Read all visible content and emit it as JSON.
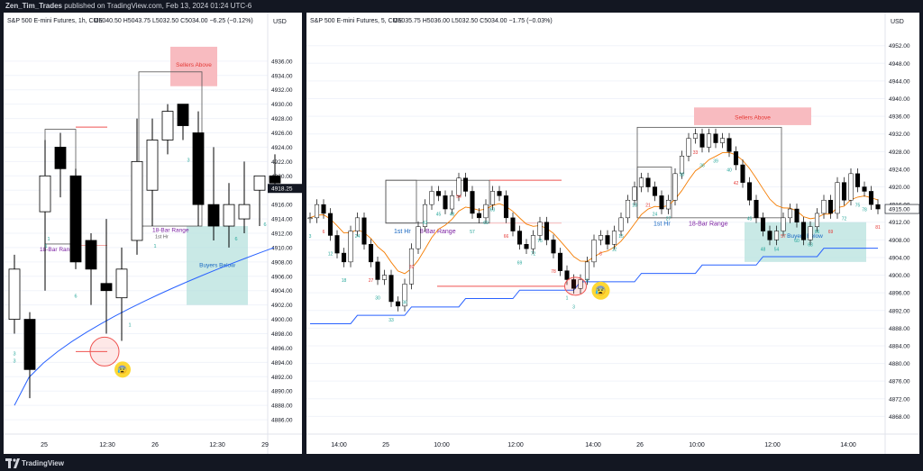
{
  "header": {
    "author": "Zen_Tim_Trades",
    "published": "published on TradingView.com, Feb 13, 2024 01:24 UTC-6"
  },
  "footer": {
    "brand": "TradingView"
  },
  "colors": {
    "up_candle": "#ffffff",
    "down_candle": "#000000",
    "vwap_line": "#2962ff",
    "ema_line": "#f57c00",
    "ema_up_line": "#26a69a",
    "sellers_zone": "#f8bbc0",
    "buyers_zone": "#b2dfdb",
    "red_line": "#ef5350"
  },
  "chart_data": [
    {
      "type": "candlestick",
      "title": "S&P 500 E-mini Futures, 1h, CME",
      "ohlc_label": "O5040.50  H5043.75  L5032.50  C5034.00  −6.25 (−0.12%)",
      "currency": "USD",
      "last_price": "4918.25",
      "ylim": [
        4884,
        4940
      ],
      "y_ticks": [
        "4936.00",
        "4934.00",
        "4932.00",
        "4930.00",
        "4928.00",
        "4926.00",
        "4924.00",
        "4922.00",
        "4920.00",
        "4918.00",
        "4916.00",
        "4914.00",
        "4912.00",
        "4910.00",
        "4908.00",
        "4906.00",
        "4904.00",
        "4902.00",
        "4900.00",
        "4898.00",
        "4896.00",
        "4894.00",
        "4892.00",
        "4890.00",
        "4888.00",
        "4886.00"
      ],
      "x_ticks": [
        "25",
        "12:30",
        "26",
        "12:30",
        "29"
      ],
      "candles": [
        {
          "o": 4900,
          "h": 4909,
          "l": 4898,
          "c": 4907
        },
        {
          "o": 4900,
          "h": 4901,
          "l": 4889,
          "c": 4893
        },
        {
          "o": 4915,
          "h": 4925,
          "l": 4904,
          "c": 4920
        },
        {
          "o": 4924,
          "h": 4926,
          "l": 4917,
          "c": 4921
        },
        {
          "o": 4920,
          "h": 4921,
          "l": 4907,
          "c": 4908
        },
        {
          "o": 4911,
          "h": 4912,
          "l": 4902,
          "c": 4907
        },
        {
          "o": 4905,
          "h": 4914,
          "l": 4898,
          "c": 4904
        },
        {
          "o": 4903,
          "h": 4910,
          "l": 4897,
          "c": 4907
        },
        {
          "o": 4911,
          "h": 4928,
          "l": 4909,
          "c": 4922
        },
        {
          "o": 4918,
          "h": 4928,
          "l": 4913,
          "c": 4925
        },
        {
          "o": 4925,
          "h": 4930,
          "l": 4923,
          "c": 4929
        },
        {
          "o": 4930,
          "h": 4930,
          "l": 4925,
          "c": 4927
        },
        {
          "o": 4926,
          "h": 4929,
          "l": 4913,
          "c": 4916
        },
        {
          "o": 4916,
          "h": 4924,
          "l": 4911,
          "c": 4913
        },
        {
          "o": 4913,
          "h": 4919,
          "l": 4910,
          "c": 4916
        },
        {
          "o": 4914,
          "h": 4922,
          "l": 4912,
          "c": 4916
        },
        {
          "o": 4918,
          "h": 4920,
          "l": 4913,
          "c": 4920
        },
        {
          "o": 4920,
          "h": 4923,
          "l": 4918,
          "c": 4919
        }
      ],
      "bar_numbers": [
        "3",
        "6",
        "1",
        "1",
        "3",
        "6",
        "1",
        "3",
        "6",
        "1"
      ],
      "annotations": {
        "sellers": "Sellers Above",
        "buyers": "Buyers Below",
        "range": "18-Bar Range",
        "first_hr": "1st Hr"
      }
    },
    {
      "type": "candlestick",
      "title": "S&P 500 E-mini Futures, 5, CME",
      "ohlc_label": "O5035.75  H5036.00  L5032.50  C5034.00  −1.75 (−0.03%)",
      "currency": "USD",
      "last_price": "4915.00",
      "ylim": [
        4864,
        4955
      ],
      "y_ticks": [
        "4952.00",
        "4948.00",
        "4944.00",
        "4940.00",
        "4936.00",
        "4932.00",
        "4928.00",
        "4924.00",
        "4920.00",
        "4916.00",
        "4912.00",
        "4908.00",
        "4904.00",
        "4900.00",
        "4896.00",
        "4892.00",
        "4888.00",
        "4884.00",
        "4880.00",
        "4876.00",
        "4872.00",
        "4868.00"
      ],
      "x_ticks": [
        "14:00",
        "25",
        "10:00",
        "12:00",
        "14:00",
        "26",
        "10:00",
        "12:00",
        "14:00"
      ],
      "price_path": [
        4913,
        4916,
        4914,
        4909,
        4905,
        4903,
        4910,
        4913,
        4907,
        4903,
        4899,
        4900,
        4894,
        4893,
        4898,
        4906,
        4911,
        4916,
        4919,
        4918,
        4915,
        4918,
        4922,
        4919,
        4914,
        4913,
        4916,
        4919,
        4918,
        4913,
        4910,
        4907,
        4906,
        4909,
        4912,
        4908,
        4905,
        4901,
        4899,
        4897,
        4899,
        4903,
        4908,
        4909,
        4907,
        4910,
        4913,
        4917,
        4920,
        4922,
        4920,
        4918,
        4915,
        4917,
        4923,
        4927,
        4931,
        4932,
        4929,
        4932,
        4930,
        4931,
        4928,
        4925,
        4921,
        4917,
        4913,
        4910,
        4908,
        4910,
        4913,
        4915,
        4912,
        4908,
        4911,
        4914,
        4917,
        4914,
        4921,
        4917,
        4923,
        4920,
        4919,
        4916,
        4915
      ],
      "bar_numbers": [
        "3",
        "6",
        "12",
        "18",
        "24",
        "27",
        "30",
        "33",
        "36",
        "39",
        "42",
        "45",
        "48",
        "54",
        "57",
        "60",
        "63",
        "66",
        "69",
        "72",
        "75",
        "78",
        "1",
        "3",
        "6",
        "8",
        "12",
        "15",
        "18",
        "21",
        "24",
        "27",
        "30",
        "33",
        "36",
        "39",
        "40",
        "42",
        "45",
        "48",
        "54",
        "57",
        "60",
        "63",
        "66",
        "69",
        "72",
        "75",
        "78",
        "81"
      ],
      "annotations": {
        "sellers": "Sellers Above",
        "buyers": "Buyers Below",
        "range": "18-Bar Range",
        "first_hr": "1st Hr",
        "first_hr_2": "1st Hr",
        "range_2": "18-Bar Range"
      }
    }
  ]
}
